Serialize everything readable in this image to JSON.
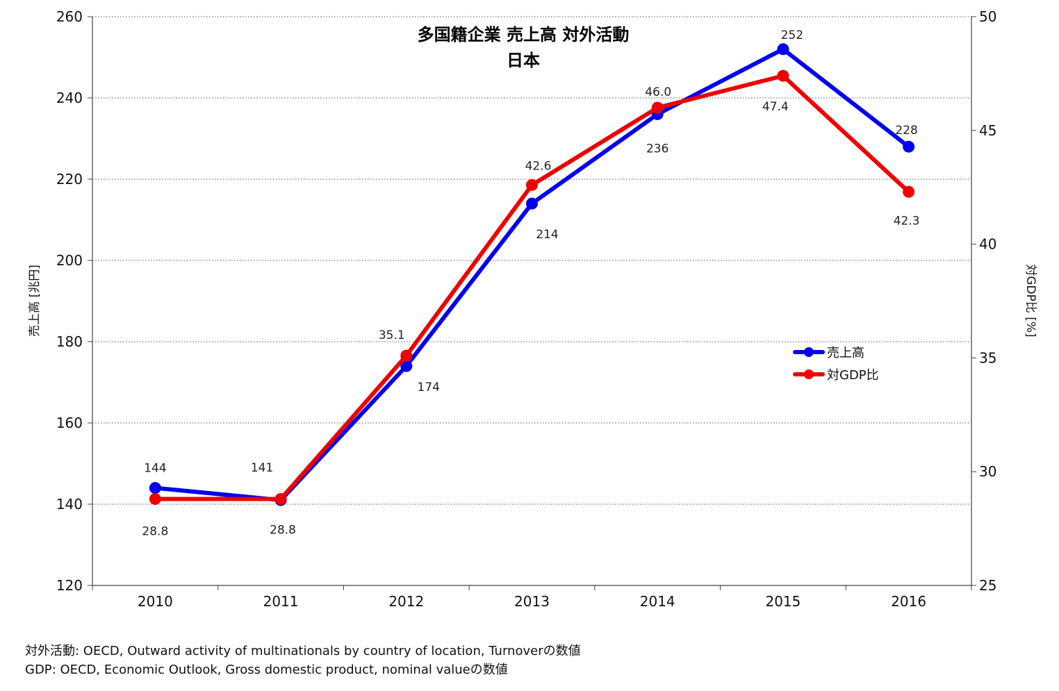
{
  "chart_data": {
    "type": "line",
    "title": "多国籍企業 売上高 対外活動",
    "subtitle": "日本",
    "categories": [
      "2010",
      "2011",
      "2012",
      "2013",
      "2014",
      "2015",
      "2016"
    ],
    "y_left": {
      "label": "売上高 [兆円]",
      "range": [
        120,
        260
      ],
      "ticks": [
        120,
        140,
        160,
        180,
        200,
        220,
        240,
        260
      ]
    },
    "y_right": {
      "label": "対GDP比 [%]",
      "range": [
        25,
        50
      ],
      "ticks": [
        25,
        30,
        35,
        40,
        45,
        50
      ]
    },
    "series": [
      {
        "name": "売上高",
        "axis": "left",
        "color": "#0000ee",
        "values": [
          144,
          141,
          174,
          214,
          236,
          252,
          228
        ],
        "labels": [
          "144",
          "141",
          "174",
          "214",
          "236",
          "252",
          "228"
        ]
      },
      {
        "name": "対GDP比",
        "axis": "right",
        "color": "#ee0000",
        "values": [
          28.8,
          28.8,
          35.1,
          42.6,
          46.0,
          47.4,
          42.3
        ],
        "labels": [
          "28.8",
          "28.8",
          "35.1",
          "42.6",
          "46.0",
          "47.4",
          "42.3"
        ]
      }
    ],
    "grid": {
      "horizontal": true,
      "style": "dotted"
    },
    "legend_position": "right"
  },
  "footnotes": [
    "対外活動: OECD, Outward activity of multinationals by country of location, Turnoverの数値",
    "GDP: OECD, Economic Outlook, Gross domestic product, nominal valueの数値"
  ]
}
